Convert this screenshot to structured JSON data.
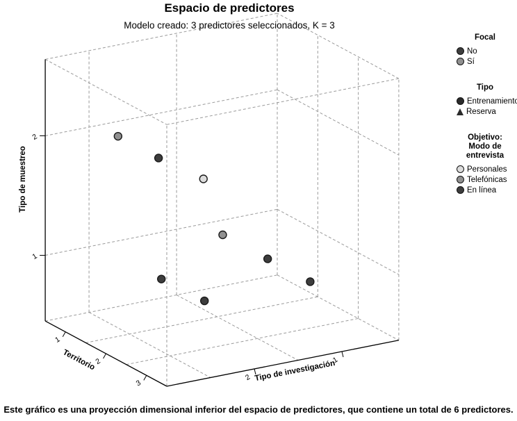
{
  "title": "Espacio de predictores",
  "subtitle": "Modelo creado: 3 predictores seleccionados, K = 3",
  "caption": "Este gráfico es una proyección dimensional inferior del espacio de predictores, que contiene un total de 6 predictores.",
  "legend": {
    "focal": {
      "title": "Focal",
      "items": [
        {
          "label": "No",
          "color": "#3d3d3d"
        },
        {
          "label": "Sí",
          "color": "#909090"
        }
      ]
    },
    "tipo": {
      "title": "Tipo",
      "items": [
        {
          "label": "Entrenamiento",
          "marker": "circle",
          "color": "#2b2b2b"
        },
        {
          "label": "Reserva",
          "marker": "triangle",
          "color": "#2b2b2b"
        }
      ]
    },
    "objetivo": {
      "title_lines": [
        "Objetivo:",
        "Modo de",
        "entrevista"
      ],
      "items": [
        {
          "label": "Personales",
          "color": "#dcdcdc"
        },
        {
          "label": "Telefónicas",
          "color": "#909090"
        },
        {
          "label": "En línea",
          "color": "#3d3d3d"
        }
      ]
    }
  },
  "chart_data": {
    "type": "scatter",
    "projection": "3d",
    "title": "Espacio de predictores",
    "subtitle": "Modelo creado: 3 predictores seleccionados, K = 3",
    "grid": true,
    "axes": {
      "x": {
        "label": "Territorio",
        "ticks": [
          1,
          2,
          3
        ],
        "range": [
          0.5,
          3.5
        ]
      },
      "y": {
        "label": "Tipo de investigación",
        "ticks": [
          2,
          1
        ],
        "range": [
          0.35,
          3.0
        ]
      },
      "z": {
        "label": "Tipo de muestreo",
        "ticks": [
          1,
          2
        ],
        "range": [
          0.45,
          2.64
        ]
      }
    },
    "colors": {
      "personales": "#dcdcdc",
      "telefonicas": "#909090",
      "en_linea": "#3d3d3d"
    },
    "points": [
      {
        "territorio": 1.0,
        "investigacion": 2.4,
        "muestreo": 2.0,
        "modo": "telefonicas",
        "tipo": "Entrenamiento"
      },
      {
        "territorio": 2.0,
        "investigacion": 2.4,
        "muestreo": 2.0,
        "modo": "en_linea",
        "tipo": "Entrenamiento"
      },
      {
        "territorio": 3.0,
        "investigacion": 2.35,
        "muestreo": 2.0,
        "modo": "personales",
        "tipo": "Entrenamiento"
      },
      {
        "territorio": 3.0,
        "investigacion": 2.13,
        "muestreo": 1.5,
        "modo": "telefonicas",
        "tipo": "Entrenamiento"
      },
      {
        "territorio": 2.07,
        "investigacion": 2.4,
        "muestreo": 1.0,
        "modo": "en_linea",
        "tipo": "Entrenamiento"
      },
      {
        "territorio": 2.1,
        "investigacion": 1.2,
        "muestreo": 1.0,
        "modo": "en_linea",
        "tipo": "Entrenamiento"
      },
      {
        "territorio": 3.15,
        "investigacion": 1.2,
        "muestreo": 1.0,
        "modo": "en_linea",
        "tipo": "Entrenamiento"
      },
      {
        "territorio": 3.09,
        "investigacion": 2.38,
        "muestreo": 1.0,
        "modo": "en_linea",
        "tipo": "Entrenamiento"
      }
    ]
  }
}
